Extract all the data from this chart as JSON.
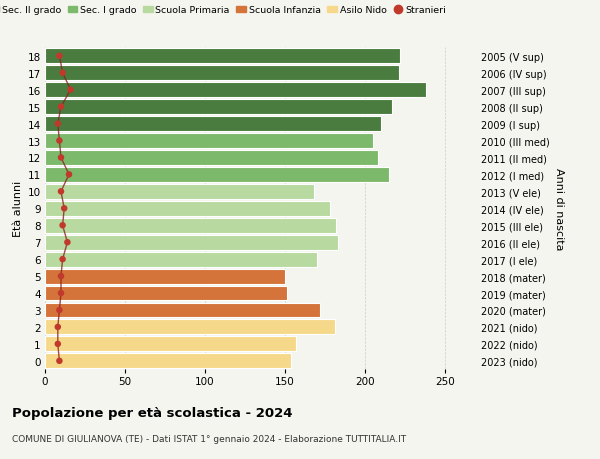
{
  "ages": [
    18,
    17,
    16,
    15,
    14,
    13,
    12,
    11,
    10,
    9,
    8,
    7,
    6,
    5,
    4,
    3,
    2,
    1,
    0
  ],
  "right_labels": [
    "2005 (V sup)",
    "2006 (IV sup)",
    "2007 (III sup)",
    "2008 (II sup)",
    "2009 (I sup)",
    "2010 (III med)",
    "2011 (II med)",
    "2012 (I med)",
    "2013 (V ele)",
    "2014 (IV ele)",
    "2015 (III ele)",
    "2016 (II ele)",
    "2017 (I ele)",
    "2018 (mater)",
    "2019 (mater)",
    "2020 (mater)",
    "2021 (nido)",
    "2022 (nido)",
    "2023 (nido)"
  ],
  "bar_values": [
    222,
    221,
    238,
    217,
    210,
    205,
    208,
    215,
    168,
    178,
    182,
    183,
    170,
    150,
    151,
    172,
    181,
    157,
    154
  ],
  "bar_colors": [
    "#4a7c3f",
    "#4a7c3f",
    "#4a7c3f",
    "#4a7c3f",
    "#4a7c3f",
    "#7db96b",
    "#7db96b",
    "#7db96b",
    "#b8d9a0",
    "#b8d9a0",
    "#b8d9a0",
    "#b8d9a0",
    "#b8d9a0",
    "#d4733a",
    "#d4733a",
    "#d4733a",
    "#f5d88a",
    "#f5d88a",
    "#f5d88a"
  ],
  "stranieri_values": [
    9,
    11,
    16,
    10,
    8,
    9,
    10,
    15,
    10,
    12,
    11,
    14,
    11,
    10,
    10,
    9,
    8,
    8,
    9
  ],
  "legend_labels": [
    "Sec. II grado",
    "Sec. I grado",
    "Scuola Primaria",
    "Scuola Infanzia",
    "Asilo Nido",
    "Stranieri"
  ],
  "legend_colors": [
    "#4a7c3f",
    "#7db96b",
    "#b8d9a0",
    "#d4733a",
    "#f5d88a",
    "#c0392b"
  ],
  "title": "Popolazione per età scolastica - 2024",
  "subtitle": "COMUNE DI GIULIANOVA (TE) - Dati ISTAT 1° gennaio 2024 - Elaborazione TUTTITALIA.IT",
  "xlabel_eta": "Età alunni",
  "ylabel_anni": "Anni di nascita",
  "xlim": [
    0,
    270
  ],
  "xticks": [
    0,
    50,
    100,
    150,
    200,
    250
  ],
  "bg_color": "#f5f5f0",
  "bar_height": 0.88,
  "stranieri_color": "#c0392b",
  "stranieri_line_color": "#8b2020"
}
